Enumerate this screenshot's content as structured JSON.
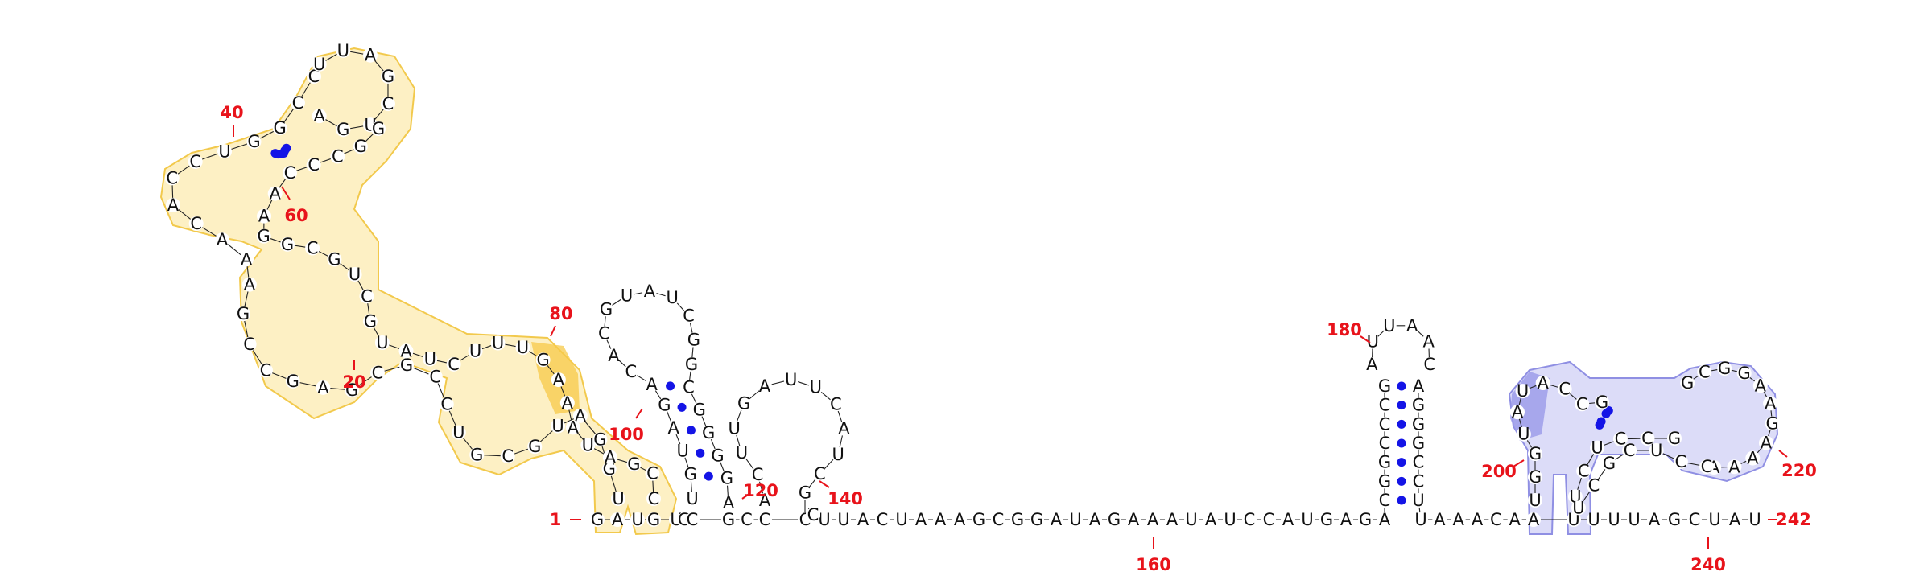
{
  "diagram": {
    "kind": "RNA secondary structure",
    "length": 242,
    "colors": {
      "nucleotide": "#111111",
      "base_pair": "#1414e6",
      "position_label": "#e8131b",
      "highlight_orange_fill": "#fdf0c4",
      "highlight_orange_stroke": "#f2c94c",
      "highlight_orange_strong": "#f7c948",
      "highlight_blue_fill": "#dcdcf8",
      "highlight_blue_stroke": "#8f8fe3",
      "highlight_blue_strong": "#9a9ae8"
    },
    "position_labels": [
      {
        "text": "1",
        "index": 1
      },
      {
        "text": "20",
        "index": 20
      },
      {
        "text": "40",
        "index": 40
      },
      {
        "text": "60",
        "index": 60
      },
      {
        "text": "80",
        "index": 80
      },
      {
        "text": "100",
        "index": 100
      },
      {
        "text": "120",
        "index": 120
      },
      {
        "text": "140",
        "index": 140
      },
      {
        "text": "160",
        "index": 160
      },
      {
        "text": "180",
        "index": 180
      },
      {
        "text": "200",
        "index": 200
      },
      {
        "text": "220",
        "index": 220
      },
      {
        "text": "240",
        "index": 240
      },
      {
        "text": "242",
        "index": 242
      }
    ],
    "sequence_segments": [
      {
        "id": "stem1-5p",
        "seq": "GA"
      },
      {
        "id": "stem1-3p",
        "seq": "UG"
      },
      {
        "id": "linker-a",
        "seq": "UGC"
      },
      {
        "id": "stem2-5p",
        "seq": "GCC"
      },
      {
        "id": "linker-long",
        "seq": "GUUACUAAAGCGGAUAGAAAUAUCCAUGAGA"
      },
      {
        "id": "linker-b",
        "seq": "UAAACAA"
      },
      {
        "id": "tail",
        "seq": "UUUUAGCUAU"
      },
      {
        "id": "hp-main-left",
        "seq": "UGGAUGCGUCCGCGAGCCGAAACACCUGGCC"
      },
      {
        "id": "hp-main-right",
        "seq": "GGCCCAAGGCGUCGUAUCUUUGAAAUAGCC"
      },
      {
        "id": "hp-top-loop",
        "seq": "UUAGCUGA"
      },
      {
        "id": "hp-mid-seq",
        "seq": "UGUAGACACGUAUCGGCGGGGA"
      },
      {
        "id": "hp-mid-right",
        "seq": "GGCUCAUACUGUUGUGGC"
      },
      {
        "id": "hp-third",
        "seq": "ACUUGAUUCAUCGC"
      },
      {
        "id": "hp180-left",
        "seq": "CGGCCCG"
      },
      {
        "id": "hp180-loop",
        "seq": "AUUAAC"
      },
      {
        "id": "hp180-right",
        "seq": "AGGGCCU"
      },
      {
        "id": "hp-blue-left",
        "seq": "UGGUAUACCG"
      },
      {
        "id": "hp-blue-loop",
        "seq": "GCGGAAGAAAA"
      },
      {
        "id": "hp-blue-right",
        "seq": "GCCUCUUCGCUCC"
      }
    ]
  }
}
